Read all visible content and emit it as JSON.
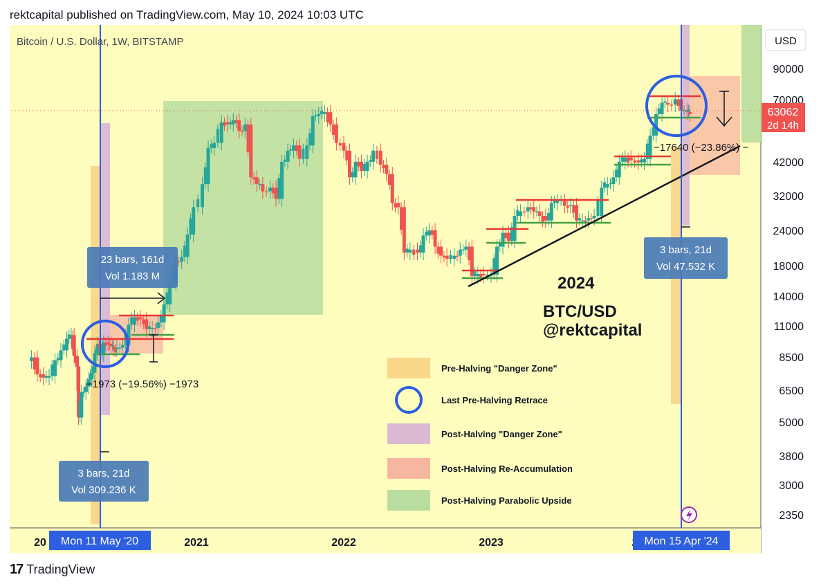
{
  "header": {
    "published": "rektcapital published on TradingView.com, May 10, 2024 10:03 UTC"
  },
  "chart_data": {
    "type": "candlestick",
    "title": "Bitcoin / U.S. Dollar, 1W, BITSTAMP",
    "currency_button": "USD",
    "y_scale": "log",
    "ylim": [
      2000,
      130000
    ],
    "y_ticks": [
      "90000",
      "70000",
      "42000",
      "32000",
      "24000",
      "18000",
      "14000",
      "11000",
      "8500",
      "6500",
      "5000",
      "3800",
      "3000",
      "2350"
    ],
    "x_ticks": [
      "20",
      "2021",
      "2022",
      "2023",
      "2"
    ],
    "current_price": {
      "value": "63062",
      "countdown": "2d 14h"
    },
    "halving_dates": [
      "Mon 11 May '20",
      "Mon 15 Apr '24"
    ],
    "ohlc_weekly_closes": [
      [
        2019.88,
        8500
      ],
      [
        2019.92,
        7400
      ],
      [
        2019.96,
        7200
      ],
      [
        2020.0,
        7300
      ],
      [
        2020.04,
        8300
      ],
      [
        2020.08,
        9000
      ],
      [
        2020.12,
        9900
      ],
      [
        2020.15,
        10200
      ],
      [
        2020.17,
        8600
      ],
      [
        2020.19,
        7900
      ],
      [
        2020.2,
        5200
      ],
      [
        2020.22,
        6400
      ],
      [
        2020.25,
        6700
      ],
      [
        2020.27,
        7100
      ],
      [
        2020.29,
        7500
      ],
      [
        2020.31,
        8800
      ],
      [
        2020.33,
        9500
      ],
      [
        2020.35,
        8700
      ],
      [
        2020.37,
        9600
      ],
      [
        2020.4,
        9500
      ],
      [
        2020.42,
        9300
      ],
      [
        2020.44,
        9100
      ],
      [
        2020.46,
        9200
      ],
      [
        2020.5,
        9400
      ],
      [
        2020.54,
        11100
      ],
      [
        2020.58,
        11800
      ],
      [
        2020.62,
        11600
      ],
      [
        2020.66,
        10700
      ],
      [
        2020.7,
        10800
      ],
      [
        2020.74,
        11300
      ],
      [
        2020.78,
        13100
      ],
      [
        2020.82,
        15600
      ],
      [
        2020.86,
        18600
      ],
      [
        2020.9,
        19300
      ],
      [
        2020.94,
        23200
      ],
      [
        2020.98,
        29000
      ],
      [
        2021.04,
        35000
      ],
      [
        2021.08,
        47000
      ],
      [
        2021.12,
        49000
      ],
      [
        2021.17,
        58000
      ],
      [
        2021.21,
        57000
      ],
      [
        2021.25,
        59000
      ],
      [
        2021.29,
        54000
      ],
      [
        2021.33,
        57000
      ],
      [
        2021.37,
        37000
      ],
      [
        2021.41,
        35000
      ],
      [
        2021.45,
        33000
      ],
      [
        2021.5,
        34000
      ],
      [
        2021.54,
        31000
      ],
      [
        2021.58,
        42000
      ],
      [
        2021.62,
        46000
      ],
      [
        2021.66,
        48000
      ],
      [
        2021.7,
        43000
      ],
      [
        2021.75,
        48000
      ],
      [
        2021.79,
        61000
      ],
      [
        2021.83,
        62000
      ],
      [
        2021.87,
        63000
      ],
      [
        2021.91,
        57000
      ],
      [
        2021.95,
        49000
      ],
      [
        2022.0,
        46000
      ],
      [
        2022.04,
        37000
      ],
      [
        2022.08,
        42000
      ],
      [
        2022.12,
        39000
      ],
      [
        2022.16,
        42000
      ],
      [
        2022.2,
        46000
      ],
      [
        2022.25,
        41000
      ],
      [
        2022.29,
        38000
      ],
      [
        2022.33,
        30000
      ],
      [
        2022.37,
        29000
      ],
      [
        2022.41,
        20000
      ],
      [
        2022.45,
        20500
      ],
      [
        2022.5,
        20000
      ],
      [
        2022.54,
        23000
      ],
      [
        2022.58,
        24000
      ],
      [
        2022.62,
        21000
      ],
      [
        2022.66,
        19500
      ],
      [
        2022.7,
        19000
      ],
      [
        2022.75,
        19500
      ],
      [
        2022.79,
        20500
      ],
      [
        2022.83,
        21000
      ],
      [
        2022.87,
        16500
      ],
      [
        2022.91,
        16800
      ],
      [
        2022.95,
        16600
      ],
      [
        2023.0,
        16700
      ],
      [
        2023.04,
        21000
      ],
      [
        2023.08,
        23500
      ],
      [
        2023.12,
        22000
      ],
      [
        2023.16,
        27000
      ],
      [
        2023.2,
        28000
      ],
      [
        2023.25,
        29000
      ],
      [
        2023.29,
        28000
      ],
      [
        2023.33,
        27000
      ],
      [
        2023.37,
        26000
      ],
      [
        2023.41,
        30000
      ],
      [
        2023.45,
        30500
      ],
      [
        2023.5,
        29300
      ],
      [
        2023.54,
        29500
      ],
      [
        2023.58,
        26000
      ],
      [
        2023.62,
        26000
      ],
      [
        2023.66,
        26500
      ],
      [
        2023.7,
        27000
      ],
      [
        2023.75,
        34000
      ],
      [
        2023.79,
        35000
      ],
      [
        2023.83,
        37000
      ],
      [
        2023.87,
        42000
      ],
      [
        2023.91,
        43500
      ],
      [
        2023.95,
        42500
      ],
      [
        2024.0,
        41800
      ],
      [
        2024.04,
        43000
      ],
      [
        2024.08,
        52000
      ],
      [
        2024.12,
        62000
      ],
      [
        2024.16,
        68000
      ],
      [
        2024.2,
        67000
      ],
      [
        2024.25,
        70000
      ],
      [
        2024.29,
        64000
      ],
      [
        2024.33,
        63000
      ],
      [
        2024.35,
        62000
      ]
    ],
    "pre_halving_retrace": "−1973 (−19.56%) −1973",
    "pre_halving_retrace_2024": "−17640 (−23.86%) −",
    "measures": [
      {
        "bars": "23 bars, 161d",
        "vol": "Vol 1.183 M"
      },
      {
        "bars": "3 bars, 21d",
        "vol": "Vol 309.236 K"
      },
      {
        "bars": "3 bars, 21d",
        "vol": "Vol 47.532 K"
      }
    ],
    "annotation": {
      "year": "2024",
      "pair": "BTC/USD",
      "handle": "@rektcapital"
    },
    "legend": [
      {
        "label": "Pre-Halving \"Danger Zone\"",
        "color": "#f9d68a",
        "kind": "box"
      },
      {
        "label": "Last Pre-Halving Retrace",
        "color": "#2d5fe0",
        "kind": "circle"
      },
      {
        "label": "Post-Halving \"Danger Zone\"",
        "color": "#dbb9d3",
        "kind": "box"
      },
      {
        "label": "Post-Halving Re-Accumulation",
        "color": "#f7b6a0",
        "kind": "box"
      },
      {
        "label": "Post-Halving Parabolic Upside",
        "color": "#b9dd9f",
        "kind": "box"
      }
    ]
  },
  "footer": {
    "logo": "17",
    "brand": "TradingView"
  }
}
